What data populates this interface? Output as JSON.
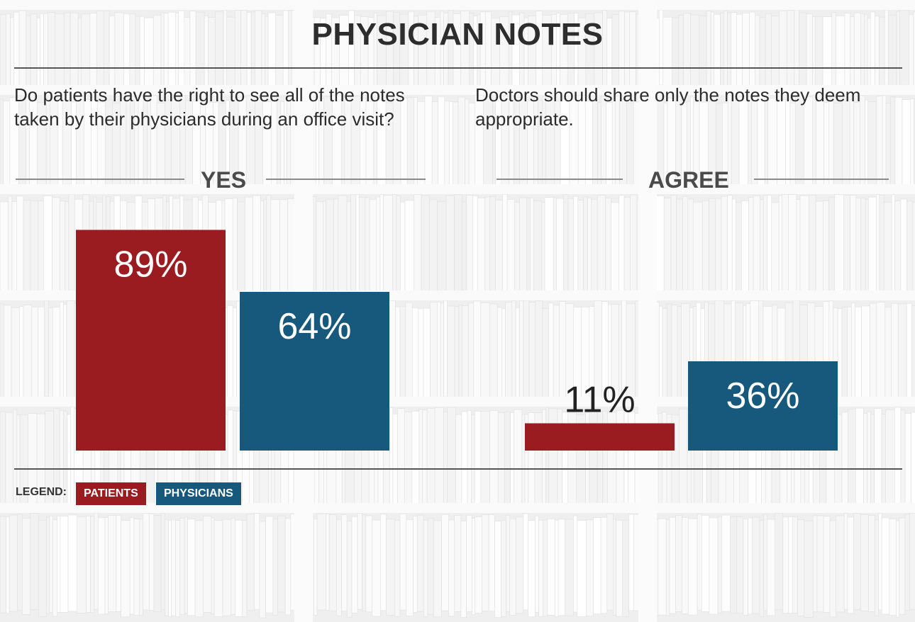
{
  "title": "PHYSICIAN NOTES",
  "legend": {
    "label": "LEGEND:",
    "items": [
      {
        "name": "PATIENTS",
        "color": "#9b1c20"
      },
      {
        "name": "PHYSICIANS",
        "color": "#17587d"
      }
    ]
  },
  "chart_data": [
    {
      "type": "bar",
      "question": "Do patients have the right to see all of the notes taken by their physicians during an office visit?",
      "heading": "YES",
      "categories": [
        "PATIENTS",
        "PHYSICIANS"
      ],
      "values": [
        89,
        64
      ],
      "labels": [
        "89%",
        "64%"
      ],
      "colors": [
        "#9b1c20",
        "#17587d"
      ],
      "ylim": [
        0,
        100
      ]
    },
    {
      "type": "bar",
      "question": "Doctors should share only the notes they deem appropriate.",
      "heading": "AGREE",
      "categories": [
        "PATIENTS",
        "PHYSICIANS"
      ],
      "values": [
        11,
        36
      ],
      "labels": [
        "11%",
        "36%"
      ],
      "colors": [
        "#9b1c20",
        "#17587d"
      ],
      "ylim": [
        0,
        100
      ]
    }
  ]
}
